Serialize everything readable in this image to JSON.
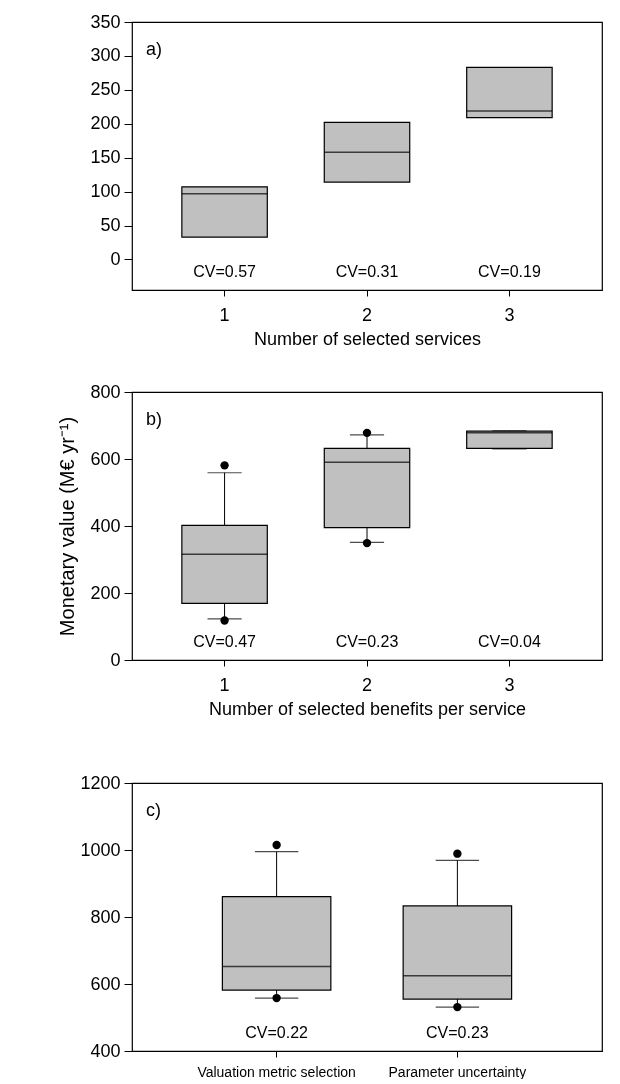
{
  "chart_data": [
    {
      "type": "box",
      "categories": [
        "1",
        "2",
        "3"
      ],
      "xlabel": "Number of selected services",
      "ylim": [
        -45,
        350
      ],
      "yticks": [
        0,
        50,
        100,
        150,
        200,
        250,
        300,
        350
      ],
      "grid": false,
      "color": "#c0c0c0",
      "boxes": [
        {
          "low": 33,
          "q1": 33,
          "median": 97,
          "q3": 107,
          "high": 107
        },
        {
          "low": 114,
          "q1": 114,
          "median": 158,
          "q3": 202,
          "high": 202
        },
        {
          "low": 209,
          "q1": 209,
          "median": 219,
          "q3": 283,
          "high": 283
        }
      ],
      "annotations": [
        "a)",
        "CV=0.57",
        "CV=0.31",
        "CV=0.19"
      ]
    },
    {
      "type": "box",
      "categories": [
        "1",
        "2",
        "3"
      ],
      "xlabel": "Number of selected benefits per service",
      "ylabel": "Monetary value (M€ yr⁻¹)",
      "ylim": [
        0,
        800
      ],
      "yticks": [
        0,
        200,
        400,
        600,
        800
      ],
      "grid": false,
      "color": "#c0c0c0",
      "boxes": [
        {
          "low": 123,
          "q1": 169,
          "median": 316,
          "q3": 402,
          "high": 559,
          "outliers": [
            118,
            581
          ]
        },
        {
          "low": 351,
          "q1": 395,
          "median": 590,
          "q3": 632,
          "high": 672,
          "outliers": [
            349,
            678
          ]
        },
        {
          "low": 630,
          "q1": 632,
          "median": 678,
          "q3": 683,
          "high": 684
        }
      ],
      "annotations": [
        "b)",
        "CV=0.47",
        "CV=0.23",
        "CV=0.04"
      ]
    },
    {
      "type": "box",
      "categories": [
        "Valuation metric selection",
        "Parameter uncertainty"
      ],
      "ylim": [
        400,
        1200
      ],
      "yticks": [
        400,
        600,
        800,
        1000,
        1200
      ],
      "grid": false,
      "color": "#c0c0c0",
      "boxes": [
        {
          "low": 558,
          "q1": 582,
          "median": 652,
          "q3": 861,
          "high": 995,
          "outliers": [
            558,
            1015
          ]
        },
        {
          "low": 531,
          "q1": 555,
          "median": 625,
          "q3": 833,
          "high": 969,
          "outliers": [
            531,
            989
          ]
        }
      ],
      "annotations": [
        "c)",
        "CV=0.22",
        "CV=0.23"
      ]
    }
  ]
}
